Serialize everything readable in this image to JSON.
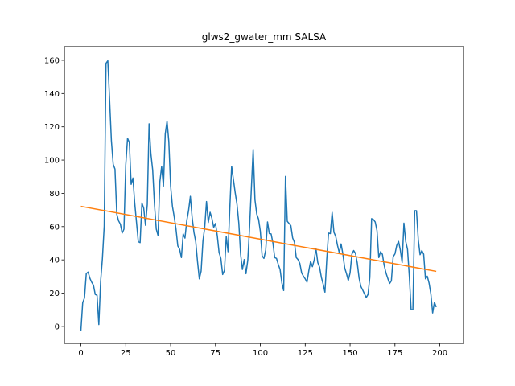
{
  "chart_data": {
    "type": "line",
    "title": "glws2_gwater_mm SALSA",
    "xlabel": "",
    "ylabel": "",
    "xlim": [
      -9.2,
      213.2
    ],
    "ylim": [
      -10.2,
      168.2
    ],
    "xticks": [
      0,
      25,
      50,
      75,
      100,
      125,
      150,
      175,
      200
    ],
    "yticks": [
      0,
      20,
      40,
      60,
      80,
      100,
      120,
      140,
      160
    ],
    "grid": false,
    "legend": "none",
    "series": [
      {
        "color": "#1f77b4",
        "values": [
          -2.6,
          14.2,
          17.1,
          31.7,
          32.7,
          29,
          26.6,
          24.8,
          19.2,
          18.7,
          1.1,
          27.1,
          40.9,
          60.3,
          158.2,
          159.7,
          136.2,
          111.6,
          97.5,
          94.6,
          67.5,
          63.5,
          61.5,
          56.1,
          58.5,
          97,
          113.1,
          110.6,
          85.4,
          89.2,
          74.2,
          62.5,
          50.9,
          50.4,
          74.2,
          71.1,
          60.8,
          73.3,
          121.8,
          103.9,
          94.1,
          73.3,
          58.5,
          54.6,
          86.9,
          96.1,
          84.4,
          115.7,
          123.5,
          111.1,
          84.4,
          72.3,
          65.9,
          58.5,
          48.4,
          46.4,
          41.4,
          55.6,
          53.1,
          63.5,
          69.6,
          78.2,
          65.4,
          56.6,
          50.9,
          38.9,
          28.6,
          33.2,
          51.3,
          59.6,
          75.1,
          62.5,
          68.6,
          65,
          59.6,
          61.9,
          54.6,
          44.4,
          40.9,
          31.2,
          33.7,
          54.1,
          44.9,
          71.3,
          96.3,
          88.2,
          80.2,
          73.3,
          62.1,
          43.4,
          34.2,
          40.2,
          31.7,
          39.9,
          59.8,
          83.2,
          106.4,
          76.1,
          67.5,
          64.5,
          57.1,
          42.4,
          40.9,
          45.9,
          62.8,
          55.8,
          55.6,
          50.2,
          41.4,
          40.9,
          37.2,
          34.2,
          26.1,
          21.6,
          90.2,
          63.2,
          61.9,
          60.6,
          53.2,
          50.6,
          41.4,
          40.2,
          37.9,
          32.2,
          30.2,
          28.6,
          26.6,
          33.4,
          39.1,
          35.9,
          39.9,
          46.7,
          38.4,
          35.6,
          29.5,
          25.4,
          20.6,
          40.2,
          56.1,
          55.8,
          68.6,
          56.6,
          54.1,
          48.7,
          44.2,
          49.6,
          43.4,
          35.2,
          31.7,
          27.6,
          32.2,
          43.4,
          45.6,
          43.9,
          38.2,
          29.2,
          24.1,
          21.9,
          19.6,
          17.4,
          19.2,
          29.5,
          64.8,
          64.3,
          62.8,
          57.6,
          41.4,
          44.9,
          43.4,
          36.7,
          32.2,
          28.9,
          25.8,
          27.4,
          41.9,
          43.6,
          48.7,
          51.1,
          45.9,
          38.4,
          62.1,
          51.1,
          46.4,
          30.2,
          10.1,
          10.1,
          69.6,
          69.6,
          52.1,
          43.1,
          45.6,
          43.4,
          28.6,
          30.2,
          26.1,
          19.6,
          8.1,
          14.5,
          11.6
        ]
      },
      {
        "color": "#ff7f0e",
        "values": [
          72.2,
          33.1
        ]
      }
    ]
  }
}
